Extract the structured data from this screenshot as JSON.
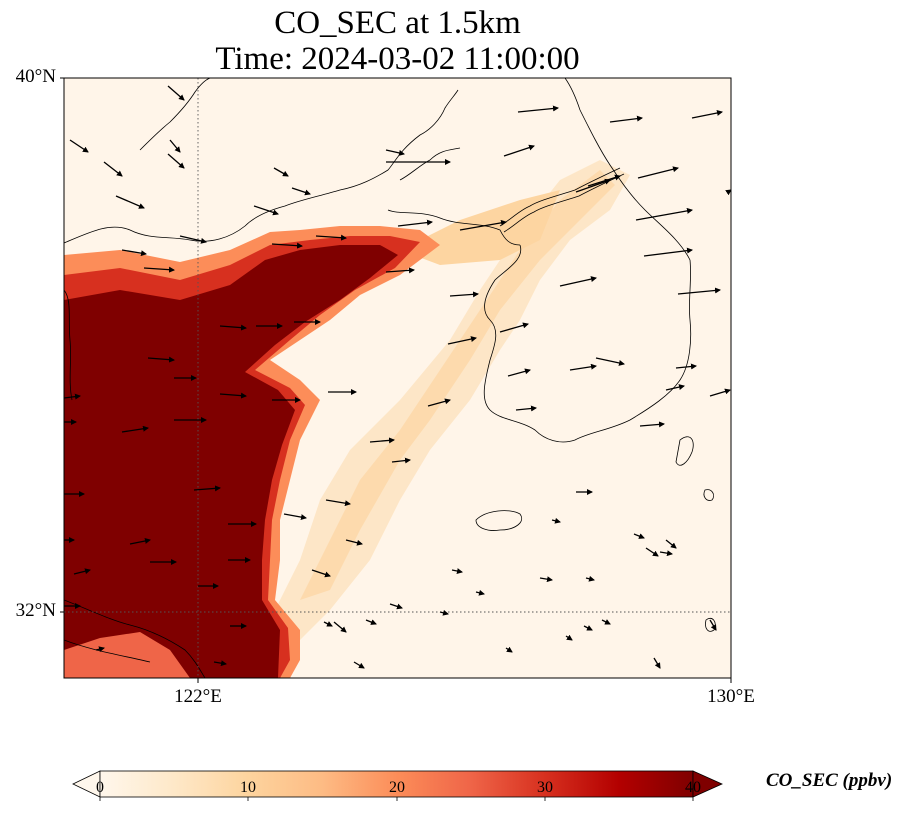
{
  "title": {
    "line1": "CO_SEC at 1.5km",
    "line2": "Time: 2024-03-02 11:00:00"
  },
  "map": {
    "lat_range": [
      31,
      40
    ],
    "lon_range": [
      120,
      130
    ],
    "lat_labels": [
      "40°N",
      "32°N"
    ],
    "lon_labels": [
      "122°E",
      "130°E"
    ],
    "gridlines": {
      "lats": [
        32
      ],
      "lons": [
        122
      ],
      "style": "dotted"
    },
    "field": {
      "variable": "CO_SEC",
      "units": "ppbv",
      "description_of_plume": "high CO (>=40 ppbv) over eastern China coast and Yellow Sea west of ~123.5E; diffuse tongue (5-15 ppbv) extending northeast across Yellow Sea to Korean peninsula"
    },
    "wind_vectors": "generally westerly to west-northwesterly, stronger over northern Korea"
  },
  "colorbar": {
    "label": "CO_SEC (ppbv)",
    "min": 0,
    "max": 40,
    "ticks": [
      "0",
      "10",
      "20",
      "30",
      "40"
    ],
    "colormap": "OrRd",
    "colors": [
      "#fff7ec",
      "#fee8c8",
      "#fdd49e",
      "#fdbb84",
      "#fc8d59",
      "#ef6548",
      "#d7301f",
      "#b30000",
      "#7f0000"
    ],
    "extend": "both"
  }
}
